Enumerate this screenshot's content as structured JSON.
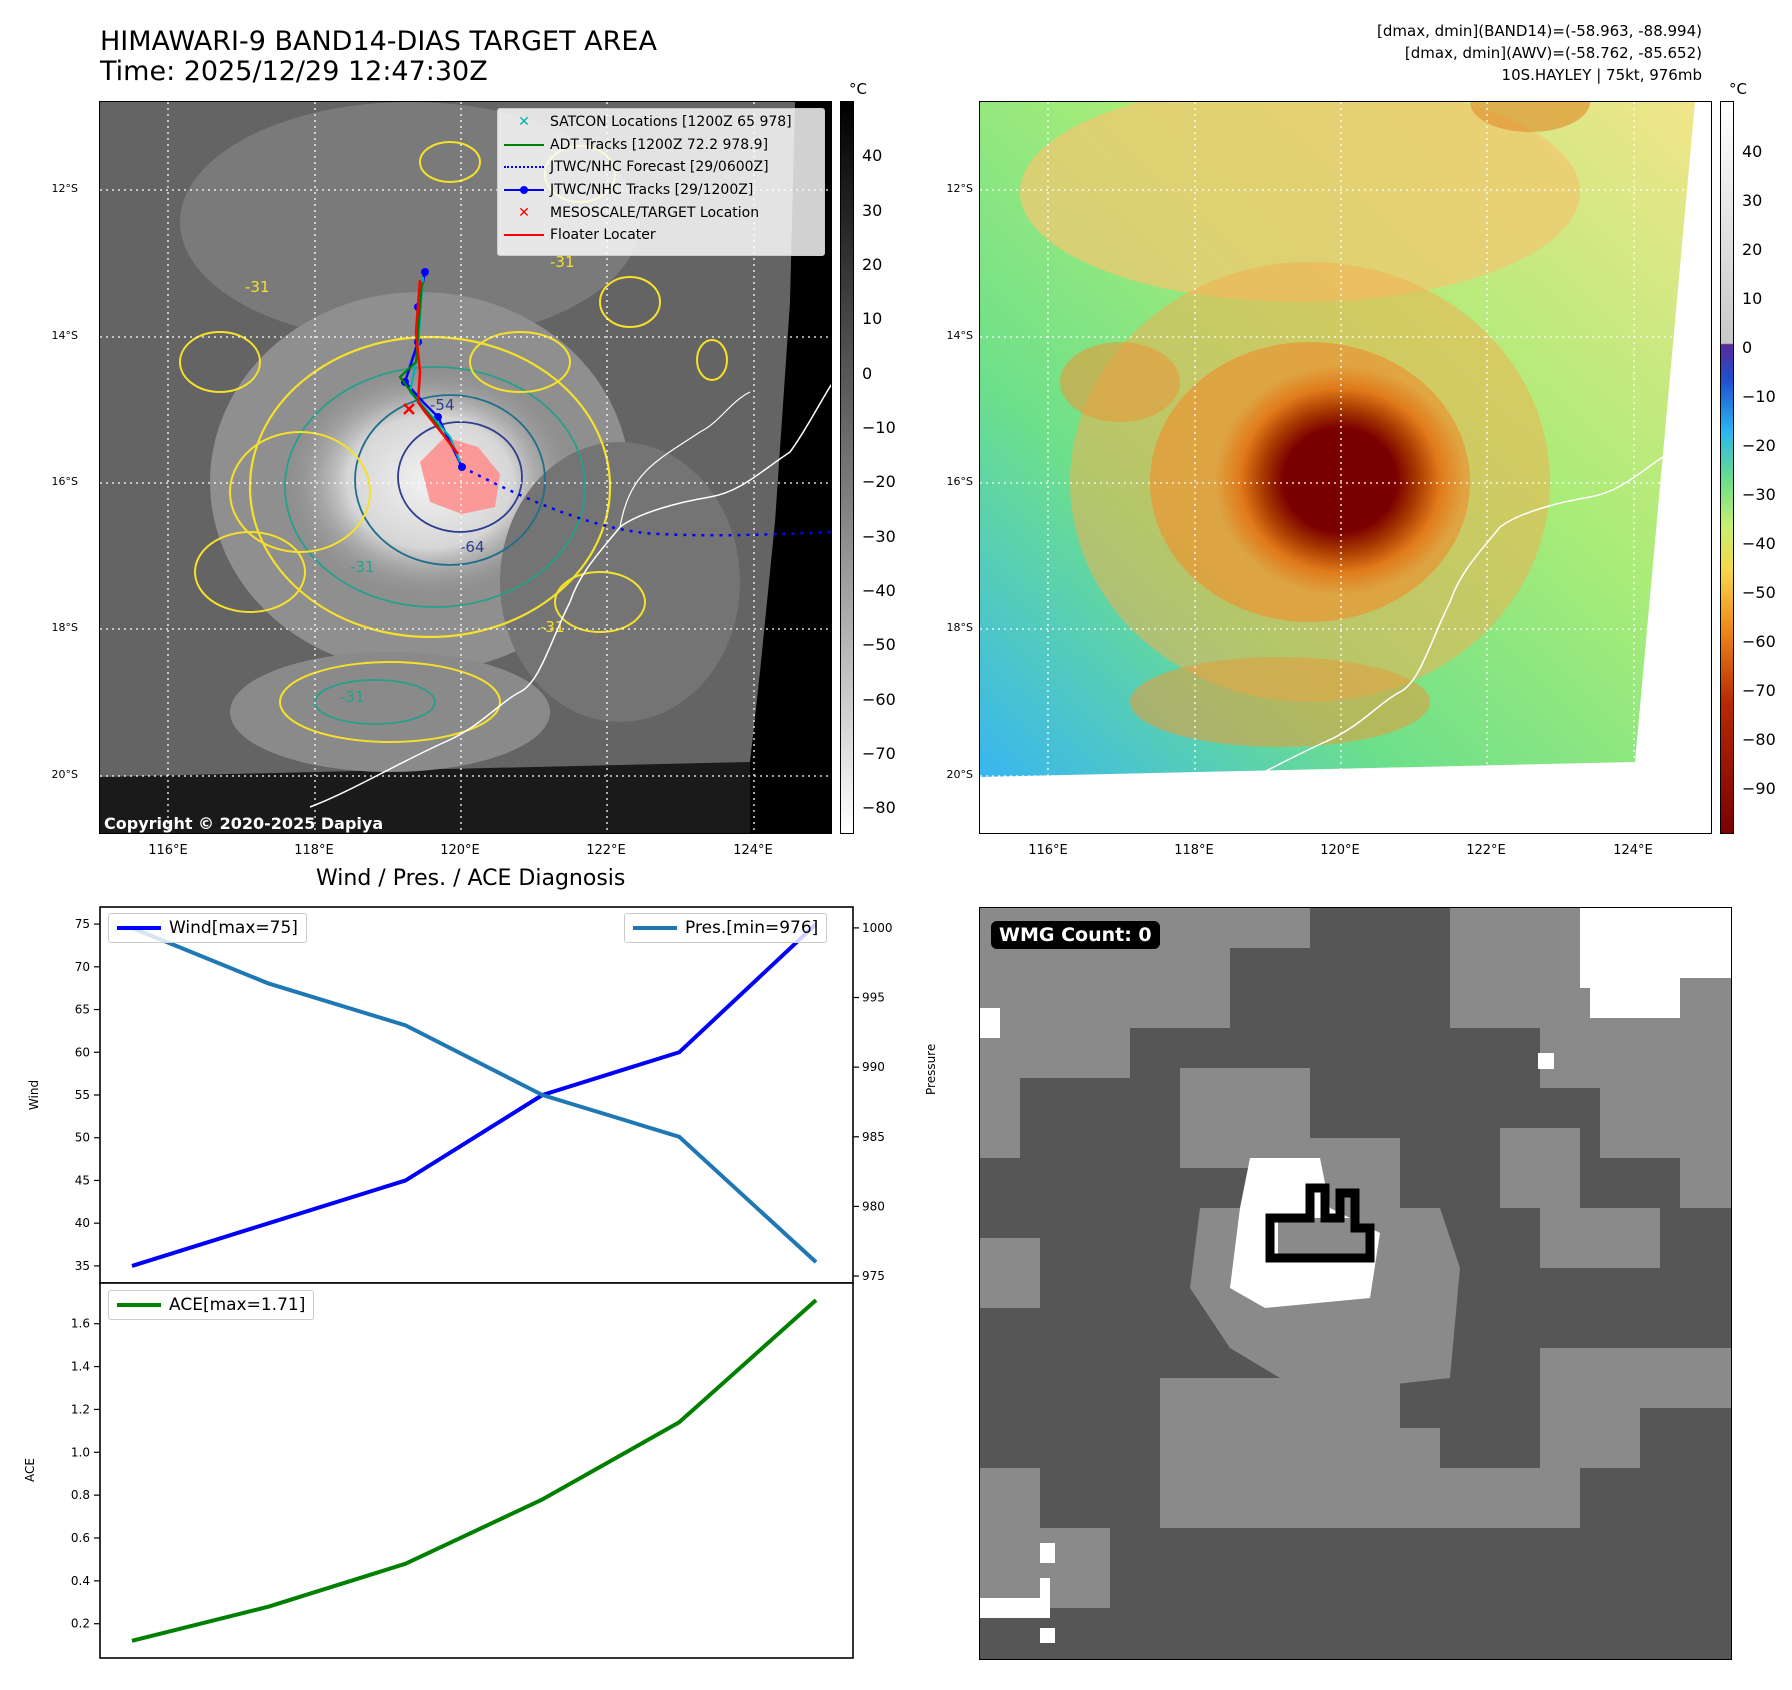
{
  "header": {
    "title_line1": "HIMAWARI-9 BAND14-DIAS TARGET AREA",
    "title_line2": "Time: 2025/12/29 12:47:30Z",
    "info_line1": "[dmax, dmin](BAND14)=(-58.963, -88.994)",
    "info_line2": "[dmax, dmin](AWV)=(-58.762, -85.652)",
    "info_line3": "10S.HAYLEY | 75kt, 976mb"
  },
  "map": {
    "lat_labels": [
      "12°S",
      "14°S",
      "16°S",
      "18°S",
      "20°S"
    ],
    "lon_labels": [
      "116°E",
      "118°E",
      "120°E",
      "122°E",
      "124°E"
    ],
    "copyright": "Copyright © 2020-2025 Dapiya",
    "contour_labels": [
      "-31",
      "-54",
      "-64",
      "-31",
      "-31",
      "-31",
      "-31"
    ],
    "colors": {
      "adt": "#008000",
      "forecast": "#0000ff",
      "jtwc": "#0000ff",
      "satcon": "#00b3b3",
      "target": "#ff0000",
      "floater": "#ff0000",
      "contour_yellow": "#f5e12a",
      "contour_teal": "#25a08b"
    }
  },
  "legend": {
    "satcon": "SATCON Locations [1200Z 65 978]",
    "adt": "ADT Tracks [1200Z 72.2 978.9]",
    "forecast": "JTWC/NHC Forecast [29/0600Z]",
    "jtwc": "JTWC/NHC Tracks [29/1200Z]",
    "target": "MESOSCALE/TARGET Location",
    "floater": "Floater Locater"
  },
  "colorbar_gray": {
    "unit": "°C",
    "ticks": [
      "40",
      "30",
      "20",
      "10",
      "0",
      "−10",
      "−20",
      "−30",
      "−40",
      "−50",
      "−60",
      "−70",
      "−80"
    ]
  },
  "colorbar_color": {
    "unit": "°C",
    "ticks": [
      "40",
      "30",
      "20",
      "10",
      "0",
      "−10",
      "−20",
      "−30",
      "−40",
      "−50",
      "−60",
      "−70",
      "−80",
      "−90"
    ]
  },
  "wmg": {
    "label": "WMG Count: 0"
  },
  "chart_data": [
    {
      "type": "line",
      "title": "Wind / Pres. / ACE Diagnosis",
      "x": [
        0,
        1,
        2,
        3,
        4,
        5
      ],
      "series": [
        {
          "name": "Wind[max=75]",
          "axis": "left",
          "color": "#0000ff",
          "values": [
            35,
            40,
            45,
            55,
            60,
            75
          ]
        },
        {
          "name": "Pres.[min=976]",
          "axis": "right",
          "color": "#1f77b4",
          "values": [
            1000,
            996,
            993,
            988,
            985,
            976
          ]
        }
      ],
      "ylabel": "Wind",
      "ylabel_right": "Pressure",
      "ylim": [
        33.0,
        77.0
      ],
      "ylim_right": [
        974.5,
        1001.5
      ],
      "yticks": [
        "35",
        "40",
        "45",
        "50",
        "55",
        "60",
        "65",
        "70",
        "75"
      ],
      "yticks_right": [
        "975",
        "980",
        "985",
        "990",
        "995",
        "1000"
      ]
    },
    {
      "type": "line",
      "x": [
        0,
        1,
        2,
        3,
        4,
        5
      ],
      "series": [
        {
          "name": "ACE[max=1.71]",
          "color": "#008000",
          "values": [
            0.12,
            0.28,
            0.48,
            0.78,
            1.14,
            1.71
          ]
        }
      ],
      "ylabel": "ACE",
      "ylim": [
        0.04,
        1.79
      ],
      "yticks": [
        "0.2",
        "0.4",
        "0.6",
        "0.8",
        "1.0",
        "1.2",
        "1.4",
        "1.6"
      ]
    }
  ]
}
